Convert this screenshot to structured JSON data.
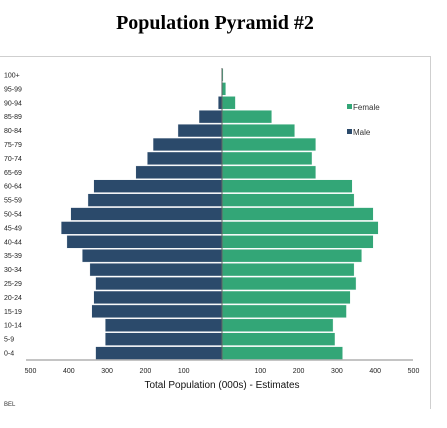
{
  "chart_data": {
    "type": "bar",
    "orientation": "horizontal-pyramid",
    "title": "Population Pyramid #2",
    "xlabel": "Total Population (000s) - Estimates",
    "ylabel": "",
    "xlim": [
      -500,
      500
    ],
    "x_ticks": [
      -500,
      -400,
      -300,
      -200,
      -100,
      100,
      200,
      300,
      400,
      500
    ],
    "x_tick_labels": [
      "500",
      "400",
      "300",
      "200",
      "100",
      "100",
      "200",
      "300",
      "400",
      "500"
    ],
    "categories": [
      "0-4",
      "5-9",
      "10-14",
      "15-19",
      "20-24",
      "25-29",
      "30-34",
      "35-39",
      "40-44",
      "45-49",
      "50-54",
      "55-59",
      "60-64",
      "65-69",
      "70-74",
      "75-79",
      "80-84",
      "85-89",
      "90-94",
      "95-99",
      "100+"
    ],
    "series": [
      {
        "name": "Male",
        "color": "#2b4a6b",
        "values": [
          -330,
          -305,
          -305,
          -340,
          -335,
          -330,
          -345,
          -365,
          -405,
          -420,
          -395,
          -350,
          -335,
          -225,
          -195,
          -180,
          -115,
          -60,
          -10,
          -2,
          -1
        ]
      },
      {
        "name": "Female",
        "color": "#33a677",
        "values": [
          315,
          295,
          290,
          325,
          335,
          350,
          345,
          365,
          395,
          408,
          395,
          345,
          340,
          245,
          235,
          245,
          190,
          130,
          35,
          10,
          3
        ]
      }
    ],
    "legend": {
      "position": "right",
      "entries": [
        "Female",
        "Male"
      ]
    },
    "grid": false
  },
  "footer_text": "BEL"
}
